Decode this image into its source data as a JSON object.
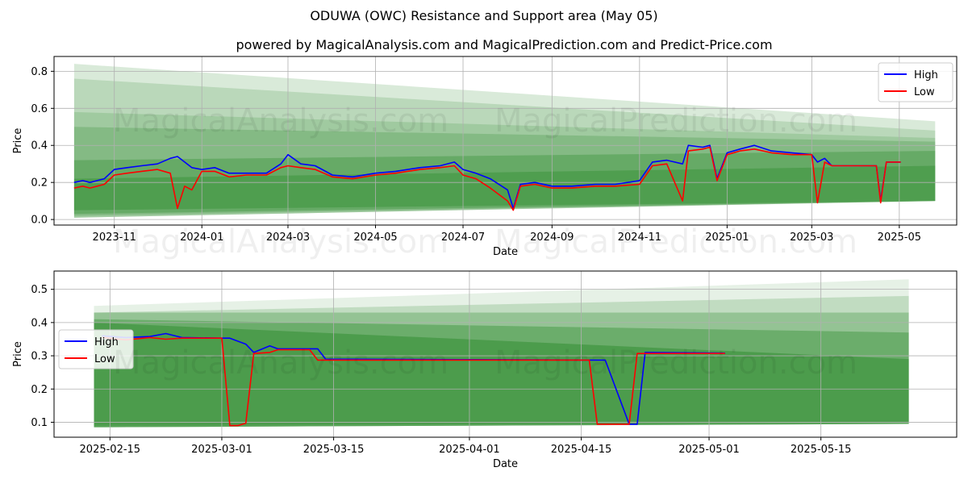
{
  "page": {
    "title": "ODUWA (OWC) Resistance and Support area (May 05)",
    "subtitle": "powered by MagicalAnalysis.com and MagicalPrediction.com and Predict-Price.com",
    "watermark_left": "MagicalAnalysis.com",
    "watermark_right": "MagicalPrediction.com"
  },
  "colors": {
    "high": "#0000ff",
    "low": "#ff0000",
    "band": "#2e8b2e",
    "grid": "#b0b0b0"
  },
  "chart_data": [
    {
      "type": "line",
      "xlabel": "Date",
      "ylabel": "Price",
      "x_domain": [
        "2023-09-20",
        "2025-06-10"
      ],
      "ylim": [
        -0.03,
        0.88
      ],
      "x_ticks": [
        "2023-11-01",
        "2024-01-01",
        "2024-03-01",
        "2024-05-01",
        "2024-07-01",
        "2024-09-01",
        "2024-11-01",
        "2025-01-01",
        "2025-03-01",
        "2025-05-01"
      ],
      "x_tick_labels": [
        "2023-11",
        "2024-01",
        "2024-03",
        "2024-05",
        "2024-07",
        "2024-09",
        "2024-11",
        "2025-01",
        "2025-03",
        "2025-05"
      ],
      "y_ticks": [
        0.0,
        0.2,
        0.4,
        0.6,
        0.8
      ],
      "y_tick_labels": [
        "0.0",
        "0.2",
        "0.4",
        "0.6",
        "0.8"
      ],
      "legend": "top-right",
      "grid": true,
      "band_range": [
        "2023-10-04",
        "2025-05-26"
      ],
      "bands": [
        {
          "upper": [
            0.84,
            0.53
          ],
          "lower": [
            0.01,
            0.1
          ],
          "opacity": 0.18
        },
        {
          "upper": [
            0.76,
            0.48
          ],
          "lower": [
            0.01,
            0.1
          ],
          "opacity": 0.18
        },
        {
          "upper": [
            0.58,
            0.44
          ],
          "lower": [
            0.01,
            0.1
          ],
          "opacity": 0.18
        },
        {
          "upper": [
            0.5,
            0.42
          ],
          "lower": [
            0.02,
            0.1
          ],
          "opacity": 0.25
        },
        {
          "upper": [
            0.32,
            0.37
          ],
          "lower": [
            0.03,
            0.1
          ],
          "opacity": 0.35
        },
        {
          "upper": [
            0.22,
            0.29
          ],
          "lower": [
            0.05,
            0.1
          ],
          "opacity": 0.4
        }
      ],
      "series": [
        {
          "name": "High",
          "x": [
            "2023-10-04",
            "2023-10-10",
            "2023-10-15",
            "2023-10-20",
            "2023-10-25",
            "2023-11-01",
            "2023-11-10",
            "2023-11-20",
            "2023-12-01",
            "2023-12-10",
            "2023-12-15",
            "2023-12-20",
            "2023-12-25",
            "2024-01-01",
            "2024-01-10",
            "2024-01-20",
            "2024-02-01",
            "2024-02-15",
            "2024-02-25",
            "2024-03-01",
            "2024-03-10",
            "2024-03-20",
            "2024-04-01",
            "2024-04-15",
            "2024-05-01",
            "2024-05-15",
            "2024-06-01",
            "2024-06-15",
            "2024-06-25",
            "2024-07-01",
            "2024-07-10",
            "2024-07-20",
            "2024-08-01",
            "2024-08-05",
            "2024-08-10",
            "2024-08-20",
            "2024-09-01",
            "2024-09-15",
            "2024-10-01",
            "2024-10-15",
            "2024-11-01",
            "2024-11-10",
            "2024-11-20",
            "2024-12-01",
            "2024-12-05",
            "2024-12-15",
            "2024-12-20",
            "2024-12-25",
            "2025-01-01",
            "2025-01-10",
            "2025-01-20",
            "2025-02-01",
            "2025-02-15",
            "2025-03-01",
            "2025-03-05",
            "2025-03-10",
            "2025-03-15",
            "2025-04-01",
            "2025-04-15",
            "2025-04-18",
            "2025-04-22",
            "2025-05-02"
          ],
          "y": [
            0.2,
            0.21,
            0.2,
            0.21,
            0.22,
            0.27,
            0.28,
            0.29,
            0.3,
            0.33,
            0.34,
            0.31,
            0.28,
            0.27,
            0.28,
            0.25,
            0.25,
            0.25,
            0.3,
            0.35,
            0.3,
            0.29,
            0.24,
            0.23,
            0.25,
            0.26,
            0.28,
            0.29,
            0.31,
            0.27,
            0.25,
            0.22,
            0.16,
            0.06,
            0.19,
            0.2,
            0.18,
            0.18,
            0.19,
            0.19,
            0.21,
            0.31,
            0.32,
            0.3,
            0.4,
            0.39,
            0.4,
            0.22,
            0.36,
            0.38,
            0.4,
            0.37,
            0.36,
            0.35,
            0.31,
            0.33,
            0.29,
            0.29,
            0.29,
            0.1,
            0.31,
            0.31
          ]
        },
        {
          "name": "Low",
          "x": [
            "2023-10-04",
            "2023-10-10",
            "2023-10-15",
            "2023-10-20",
            "2023-10-25",
            "2023-11-01",
            "2023-11-10",
            "2023-11-20",
            "2023-12-01",
            "2023-12-10",
            "2023-12-15",
            "2023-12-20",
            "2023-12-25",
            "2024-01-01",
            "2024-01-10",
            "2024-01-20",
            "2024-02-01",
            "2024-02-15",
            "2024-02-25",
            "2024-03-01",
            "2024-03-10",
            "2024-03-20",
            "2024-04-01",
            "2024-04-15",
            "2024-05-01",
            "2024-05-15",
            "2024-06-01",
            "2024-06-15",
            "2024-06-25",
            "2024-07-01",
            "2024-07-10",
            "2024-07-20",
            "2024-08-01",
            "2024-08-05",
            "2024-08-10",
            "2024-08-20",
            "2024-09-01",
            "2024-09-15",
            "2024-10-01",
            "2024-10-15",
            "2024-11-01",
            "2024-11-10",
            "2024-11-20",
            "2024-12-01",
            "2024-12-05",
            "2024-12-15",
            "2024-12-20",
            "2024-12-25",
            "2025-01-01",
            "2025-01-10",
            "2025-01-20",
            "2025-02-01",
            "2025-02-15",
            "2025-03-01",
            "2025-03-05",
            "2025-03-10",
            "2025-03-15",
            "2025-04-01",
            "2025-04-15",
            "2025-04-18",
            "2025-04-22",
            "2025-05-02"
          ],
          "y": [
            0.17,
            0.18,
            0.17,
            0.18,
            0.19,
            0.24,
            0.25,
            0.26,
            0.27,
            0.25,
            0.06,
            0.18,
            0.16,
            0.26,
            0.26,
            0.23,
            0.24,
            0.24,
            0.28,
            0.29,
            0.28,
            0.27,
            0.23,
            0.22,
            0.24,
            0.25,
            0.27,
            0.28,
            0.29,
            0.24,
            0.22,
            0.17,
            0.1,
            0.05,
            0.18,
            0.19,
            0.17,
            0.17,
            0.18,
            0.18,
            0.19,
            0.29,
            0.3,
            0.1,
            0.37,
            0.38,
            0.39,
            0.21,
            0.35,
            0.37,
            0.38,
            0.36,
            0.35,
            0.35,
            0.09,
            0.31,
            0.29,
            0.29,
            0.29,
            0.09,
            0.31,
            0.31
          ]
        }
      ]
    },
    {
      "type": "line",
      "xlabel": "Date",
      "ylabel": "Price",
      "x_domain": [
        "2025-02-08",
        "2025-06-01"
      ],
      "ylim": [
        0.055,
        0.555
      ],
      "x_ticks": [
        "2025-02-15",
        "2025-03-01",
        "2025-03-15",
        "2025-04-01",
        "2025-04-15",
        "2025-05-01",
        "2025-05-15"
      ],
      "x_tick_labels": [
        "2025-02-15",
        "2025-03-01",
        "2025-03-15",
        "2025-04-01",
        "2025-04-15",
        "2025-05-01",
        "2025-05-15"
      ],
      "y_ticks": [
        0.1,
        0.2,
        0.3,
        0.4,
        0.5
      ],
      "y_tick_labels": [
        "0.1",
        "0.2",
        "0.3",
        "0.4",
        "0.5"
      ],
      "legend": "center-left",
      "grid": true,
      "band_range": [
        "2025-02-13",
        "2025-05-26"
      ],
      "bands": [
        {
          "upper": [
            0.45,
            0.53
          ],
          "lower": [
            0.09,
            0.1
          ],
          "opacity": 0.12
        },
        {
          "upper": [
            0.43,
            0.48
          ],
          "lower": [
            0.09,
            0.1
          ],
          "opacity": 0.2
        },
        {
          "upper": [
            0.43,
            0.43
          ],
          "lower": [
            0.085,
            0.095
          ],
          "opacity": 0.3
        },
        {
          "upper": [
            0.41,
            0.37
          ],
          "lower": [
            0.085,
            0.095
          ],
          "opacity": 0.4
        },
        {
          "upper": [
            0.4,
            0.29
          ],
          "lower": [
            0.085,
            0.095
          ],
          "opacity": 0.5
        }
      ],
      "series": [
        {
          "name": "High",
          "x": [
            "2025-02-14",
            "2025-02-17",
            "2025-02-20",
            "2025-02-22",
            "2025-02-24",
            "2025-03-01",
            "2025-03-02",
            "2025-03-04",
            "2025-03-05",
            "2025-03-07",
            "2025-03-08",
            "2025-03-13",
            "2025-03-14",
            "2025-04-17",
            "2025-04-18",
            "2025-04-21",
            "2025-04-22",
            "2025-04-23",
            "2025-05-03"
          ],
          "y": [
            0.36,
            0.355,
            0.358,
            0.367,
            0.355,
            0.353,
            0.353,
            0.335,
            0.31,
            0.33,
            0.321,
            0.321,
            0.29,
            0.287,
            0.287,
            0.094,
            0.094,
            0.31,
            0.308
          ]
        },
        {
          "name": "Low",
          "x": [
            "2025-02-14",
            "2025-02-17",
            "2025-02-20",
            "2025-02-22",
            "2025-02-24",
            "2025-03-01",
            "2025-03-02",
            "2025-03-03",
            "2025-03-04",
            "2025-03-05",
            "2025-03-07",
            "2025-03-08",
            "2025-03-12",
            "2025-03-13",
            "2025-04-16",
            "2025-04-17",
            "2025-04-21",
            "2025-04-22",
            "2025-05-03"
          ],
          "y": [
            0.355,
            0.348,
            0.355,
            0.35,
            0.353,
            0.353,
            0.09,
            0.09,
            0.097,
            0.307,
            0.31,
            0.318,
            0.318,
            0.287,
            0.287,
            0.094,
            0.094,
            0.307,
            0.307
          ]
        }
      ]
    }
  ]
}
